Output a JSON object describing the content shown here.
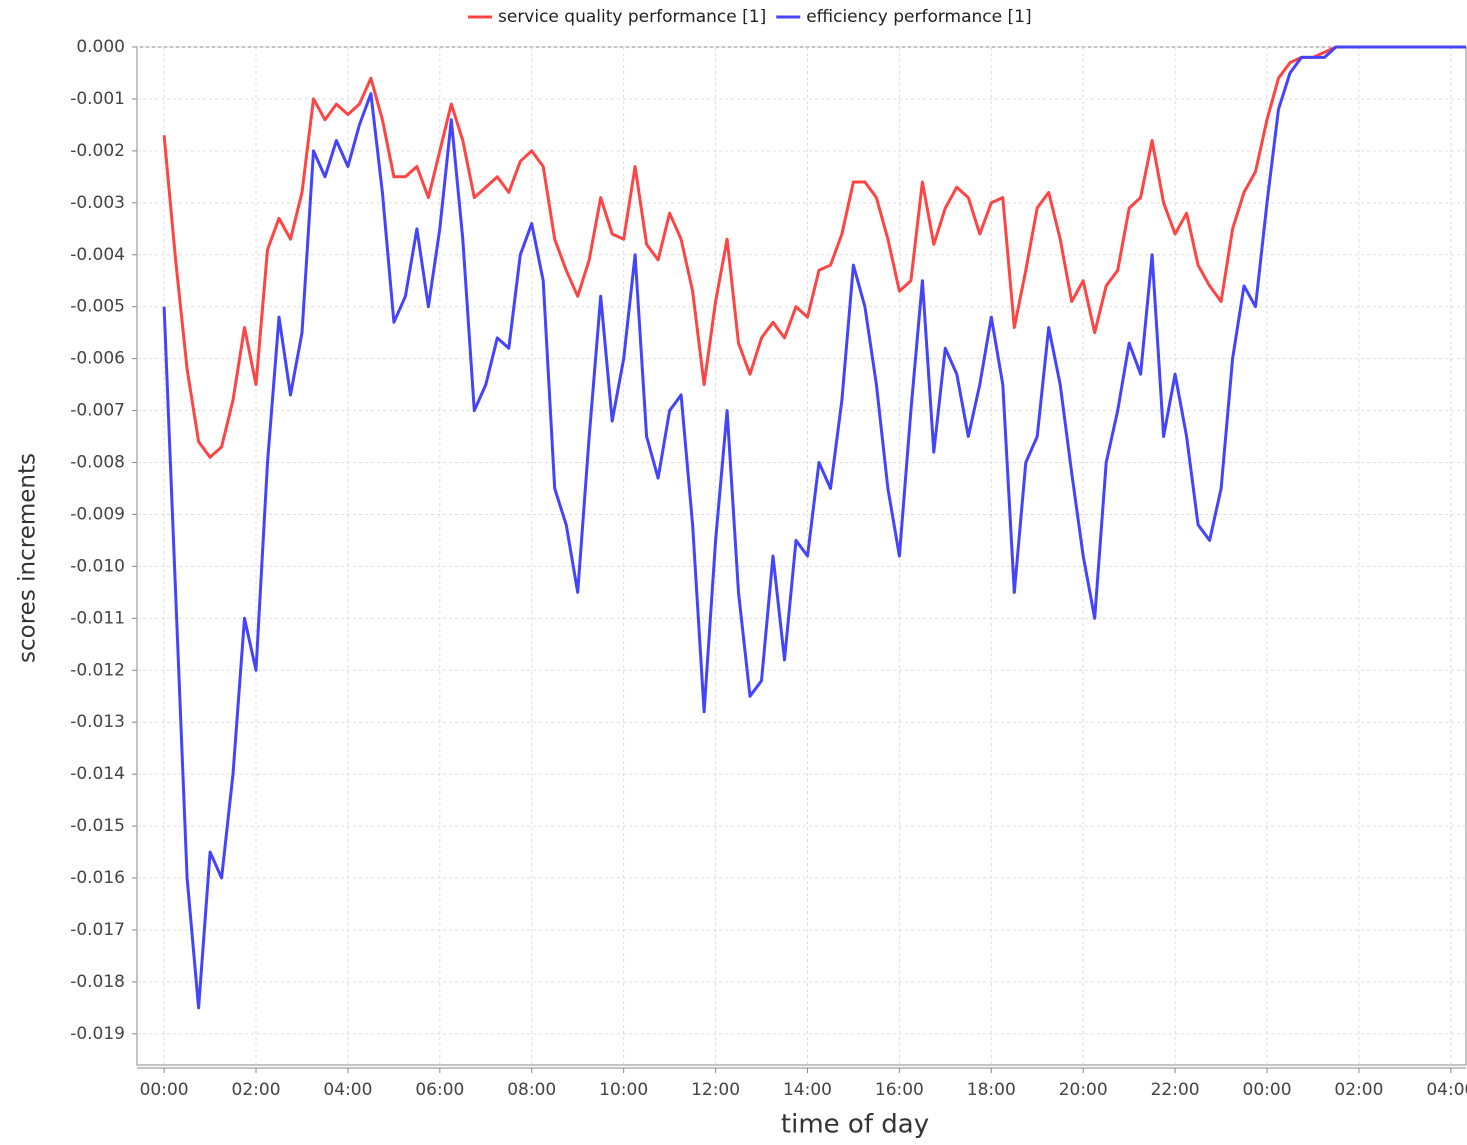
{
  "chart_data": {
    "type": "line",
    "legend": [
      "service quality performance [1]",
      "efficiency performance [1]"
    ],
    "xlabel": "time of day",
    "ylabel": "scores increments",
    "x": [
      0,
      0.25,
      0.5,
      0.75,
      1,
      1.25,
      1.5,
      1.75,
      2,
      2.25,
      2.5,
      2.75,
      3,
      3.25,
      3.5,
      3.75,
      4,
      4.25,
      4.5,
      4.75,
      5,
      5.25,
      5.5,
      5.75,
      6,
      6.25,
      6.5,
      6.75,
      7,
      7.25,
      7.5,
      7.75,
      8,
      8.25,
      8.5,
      8.75,
      9,
      9.25,
      9.5,
      9.75,
      10,
      10.25,
      10.5,
      10.75,
      11,
      11.25,
      11.5,
      11.75,
      12,
      12.25,
      12.5,
      12.75,
      13,
      13.25,
      13.5,
      13.75,
      14,
      14.25,
      14.5,
      14.75,
      15,
      15.25,
      15.5,
      15.75,
      16,
      16.25,
      16.5,
      16.75,
      17,
      17.25,
      17.5,
      17.75,
      18,
      18.25,
      18.5,
      18.75,
      19,
      19.25,
      19.5,
      19.75,
      20,
      20.25,
      20.5,
      20.75,
      21,
      21.25,
      21.5,
      21.75,
      22,
      22.25,
      22.5,
      22.75,
      23,
      23.25,
      23.5,
      23.75,
      24,
      24.25,
      24.5,
      24.75,
      25,
      25.25,
      25.5,
      28.33
    ],
    "series": [
      {
        "name": "service quality performance [1]",
        "color": "#ff4444",
        "values": [
          -0.0017,
          -0.0041,
          -0.0062,
          -0.0076,
          -0.0079,
          -0.0077,
          -0.0068,
          -0.0054,
          -0.0065,
          -0.0039,
          -0.0033,
          -0.0037,
          -0.0028,
          -0.001,
          -0.0014,
          -0.0011,
          -0.0013,
          -0.0011,
          -0.0006,
          -0.0014,
          -0.0025,
          -0.0025,
          -0.0023,
          -0.0029,
          -0.002,
          -0.0011,
          -0.0018,
          -0.0029,
          -0.0027,
          -0.0025,
          -0.0028,
          -0.0022,
          -0.002,
          -0.0023,
          -0.0037,
          -0.0043,
          -0.0048,
          -0.0041,
          -0.0029,
          -0.0036,
          -0.0037,
          -0.0023,
          -0.0038,
          -0.0041,
          -0.0032,
          -0.0037,
          -0.0047,
          -0.0065,
          -0.0049,
          -0.0037,
          -0.0057,
          -0.0063,
          -0.0056,
          -0.0053,
          -0.0056,
          -0.005,
          -0.0052,
          -0.0043,
          -0.0042,
          -0.0036,
          -0.0026,
          -0.0026,
          -0.0029,
          -0.0037,
          -0.0047,
          -0.0045,
          -0.0026,
          -0.0038,
          -0.0031,
          -0.0027,
          -0.0029,
          -0.0036,
          -0.003,
          -0.0029,
          -0.0054,
          -0.0043,
          -0.0031,
          -0.0028,
          -0.0037,
          -0.0049,
          -0.0045,
          -0.0055,
          -0.0046,
          -0.0043,
          -0.0031,
          -0.0029,
          -0.0018,
          -0.003,
          -0.0036,
          -0.0032,
          -0.0042,
          -0.0046,
          -0.0049,
          -0.0035,
          -0.0028,
          -0.0024,
          -0.0014,
          -0.0006,
          -0.0003,
          -0.0002,
          -0.0002,
          -0.0001,
          0,
          0
        ]
      },
      {
        "name": "efficiency performance [1]",
        "color": "#4444ff",
        "values": [
          -0.005,
          -0.0105,
          -0.016,
          -0.0185,
          -0.0155,
          -0.016,
          -0.014,
          -0.011,
          -0.012,
          -0.008,
          -0.0052,
          -0.0067,
          -0.0055,
          -0.002,
          -0.0025,
          -0.0018,
          -0.0023,
          -0.0015,
          -0.0009,
          -0.0028,
          -0.0053,
          -0.0048,
          -0.0035,
          -0.005,
          -0.0035,
          -0.0014,
          -0.0037,
          -0.007,
          -0.0065,
          -0.0056,
          -0.0058,
          -0.004,
          -0.0034,
          -0.0045,
          -0.0085,
          -0.0092,
          -0.0105,
          -0.0075,
          -0.0048,
          -0.0072,
          -0.006,
          -0.004,
          -0.0075,
          -0.0083,
          -0.007,
          -0.0067,
          -0.0092,
          -0.0128,
          -0.0095,
          -0.007,
          -0.0105,
          -0.0125,
          -0.0122,
          -0.0098,
          -0.0118,
          -0.0095,
          -0.0098,
          -0.008,
          -0.0085,
          -0.0068,
          -0.0042,
          -0.005,
          -0.0065,
          -0.0085,
          -0.0098,
          -0.007,
          -0.0045,
          -0.0078,
          -0.0058,
          -0.0063,
          -0.0075,
          -0.0065,
          -0.0052,
          -0.0065,
          -0.0105,
          -0.008,
          -0.0075,
          -0.0054,
          -0.0065,
          -0.0082,
          -0.0098,
          -0.011,
          -0.008,
          -0.007,
          -0.0057,
          -0.0063,
          -0.004,
          -0.0075,
          -0.0063,
          -0.0075,
          -0.0092,
          -0.0095,
          -0.0085,
          -0.006,
          -0.0046,
          -0.005,
          -0.003,
          -0.0012,
          -0.0005,
          -0.0002,
          -0.0002,
          -0.0002,
          0,
          0
        ]
      }
    ],
    "xlim": [
      -0.59,
      28.33
    ],
    "ylim": [
      -0.0196,
      0
    ],
    "xticks": [
      {
        "value": 0,
        "label": "00:00"
      },
      {
        "value": 2,
        "label": "02:00"
      },
      {
        "value": 4,
        "label": "04:00"
      },
      {
        "value": 6,
        "label": "06:00"
      },
      {
        "value": 8,
        "label": "08:00"
      },
      {
        "value": 10,
        "label": "10:00"
      },
      {
        "value": 12,
        "label": "12:00"
      },
      {
        "value": 14,
        "label": "14:00"
      },
      {
        "value": 16,
        "label": "16:00"
      },
      {
        "value": 18,
        "label": "18:00"
      },
      {
        "value": 20,
        "label": "20:00"
      },
      {
        "value": 22,
        "label": "22:00"
      },
      {
        "value": 24,
        "label": "00:00"
      },
      {
        "value": 26,
        "label": "02:00"
      },
      {
        "value": 28,
        "label": "04:00"
      }
    ],
    "yticks": [
      {
        "value": 0,
        "label": "0.000"
      },
      {
        "value": -0.001,
        "label": "-0.001"
      },
      {
        "value": -0.002,
        "label": "-0.002"
      },
      {
        "value": -0.003,
        "label": "-0.003"
      },
      {
        "value": -0.004,
        "label": "-0.004"
      },
      {
        "value": -0.005,
        "label": "-0.005"
      },
      {
        "value": -0.006,
        "label": "-0.006"
      },
      {
        "value": -0.007,
        "label": "-0.007"
      },
      {
        "value": -0.008,
        "label": "-0.008"
      },
      {
        "value": -0.009,
        "label": "-0.009"
      },
      {
        "value": -0.01,
        "label": "-0.010"
      },
      {
        "value": -0.011,
        "label": "-0.011"
      },
      {
        "value": -0.012,
        "label": "-0.012"
      },
      {
        "value": -0.013,
        "label": "-0.013"
      },
      {
        "value": -0.014,
        "label": "-0.014"
      },
      {
        "value": -0.015,
        "label": "-0.015"
      },
      {
        "value": -0.016,
        "label": "-0.016"
      },
      {
        "value": -0.017,
        "label": "-0.017"
      },
      {
        "value": -0.018,
        "label": "-0.018"
      },
      {
        "value": -0.019,
        "label": "-0.019"
      }
    ],
    "grid": true
  }
}
